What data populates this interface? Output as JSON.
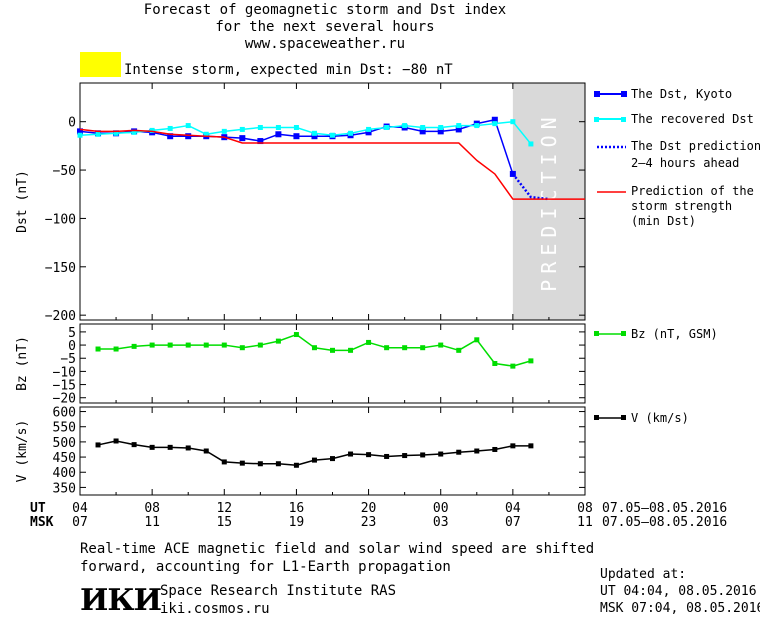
{
  "header": {
    "title_line1": "Forecast of geomagnetic storm and Dst index",
    "title_line2": "for the next several hours",
    "title_line3": "www.spaceweather.ru"
  },
  "status": {
    "text": "Intense storm, expected min Dst: −80 nT",
    "swatch_color": "#ffff00"
  },
  "footer": {
    "note_line1": "Real-time ACE magnetic field and solar wind speed are shifted",
    "note_line2": "forward, accounting for L1-Earth propagation",
    "logo_text": "ИКИ",
    "institute_name": "Space Research Institute RAS",
    "institute_site": "iki.cosmos.ru",
    "updated_title": "Updated at:",
    "updated_ut": "UT   04:04, 08.05.2016",
    "updated_msk": "MSK 07:04, 08.05.2016"
  },
  "time_axis": {
    "ut_label": "UT",
    "msk_label": "MSK",
    "ut_ticks": [
      "04",
      "08",
      "12",
      "16",
      "20",
      "00",
      "04",
      "08"
    ],
    "msk_ticks": [
      "07",
      "11",
      "15",
      "19",
      "23",
      "03",
      "07",
      "11"
    ],
    "ut_date_range": "07.05–08.05.2016",
    "msk_date_range": "07.05–08.05.2016"
  },
  "chart_data": [
    {
      "type": "line",
      "title": "Forecast of geomagnetic storm and Dst index",
      "ylabel": "Dst (nT)",
      "ylim": [
        -205,
        40
      ],
      "yticks": [
        0,
        -50,
        -100,
        -150,
        -200
      ],
      "x_unit": "hours since 04 UT 07.05.2016",
      "xlim": [
        0,
        28
      ],
      "shaded_region": {
        "x_from": 24,
        "x_to": 28,
        "label": "PREDICTION",
        "color": "#d9d9d9"
      },
      "series": [
        {
          "name": "The Dst, Kyoto",
          "color": "#0000ff",
          "x": [
            0,
            1,
            2,
            3,
            4,
            5,
            6,
            7,
            8,
            9,
            10,
            11,
            12,
            13,
            14,
            15,
            16,
            17,
            18,
            19,
            20,
            21,
            22,
            23,
            24
          ],
          "y": [
            -10,
            -12,
            -12,
            -10,
            -11,
            -15,
            -15,
            -15,
            -16,
            -17,
            -20,
            -13,
            -15,
            -15,
            -15,
            -14,
            -11,
            -5,
            -6,
            -10,
            -10,
            -8,
            -2,
            2,
            -54
          ]
        },
        {
          "name": "The recovered Dst",
          "color": "#00ffff",
          "x": [
            0,
            1,
            2,
            3,
            4,
            5,
            6,
            7,
            8,
            9,
            10,
            11,
            12,
            13,
            14,
            15,
            16,
            17,
            18,
            19,
            20,
            21,
            22,
            23,
            24,
            25
          ],
          "y": [
            -14,
            -13,
            -12,
            -11,
            -9,
            -7,
            -4,
            -13,
            -10,
            -8,
            -6,
            -6,
            -6,
            -12,
            -14,
            -12,
            -8,
            -6,
            -4,
            -6,
            -6,
            -4,
            -4,
            -2,
            0,
            -23
          ]
        },
        {
          "name": "The Dst prediction 2–4 hours ahead",
          "color": "#0000ff",
          "x": [
            24,
            25,
            26
          ],
          "y": [
            -54,
            -78,
            -80
          ]
        },
        {
          "name": "Prediction of the storm strength (min Dst)",
          "color": "#ff0000",
          "x": [
            0,
            1,
            2,
            3,
            4,
            5,
            6,
            7,
            8,
            9,
            10,
            11,
            12,
            13,
            14,
            15,
            16,
            17,
            18,
            19,
            20,
            21,
            22,
            23,
            24,
            26,
            28
          ],
          "y": [
            -8,
            -10,
            -10,
            -9,
            -10,
            -13,
            -14,
            -15,
            -16,
            -22,
            -22,
            -22,
            -22,
            -22,
            -22,
            -22,
            -22,
            -22,
            -22,
            -22,
            -22,
            -22,
            -40,
            -54,
            -80,
            -80,
            -80
          ]
        }
      ]
    },
    {
      "type": "line",
      "ylabel": "Bz (nT)",
      "ylim": [
        -22,
        8
      ],
      "yticks": [
        5,
        0,
        -5,
        -10,
        -15,
        -20
      ],
      "x_unit": "hours since 04 UT 07.05.2016",
      "xlim": [
        0,
        28
      ],
      "series": [
        {
          "name": "Bz (nT, GSM)",
          "color": "#00dd00",
          "x": [
            1,
            2,
            3,
            4,
            5,
            6,
            7,
            8,
            9,
            10,
            11,
            12,
            13,
            14,
            15,
            16,
            17,
            18,
            19,
            20,
            21,
            22,
            23,
            24,
            25
          ],
          "y": [
            -1.5,
            -1.5,
            -0.5,
            0,
            0,
            0,
            0,
            0,
            -1,
            0,
            1.5,
            4,
            -1,
            -2,
            -2,
            1,
            -1,
            -1,
            -1,
            0,
            -2,
            2,
            -7,
            -8,
            -6
          ]
        }
      ]
    },
    {
      "type": "line",
      "ylabel": "V (km/s)",
      "ylim": [
        325,
        615
      ],
      "yticks": [
        600,
        550,
        500,
        450,
        400,
        350
      ],
      "x_unit": "hours since 04 UT 07.05.2016",
      "xlim": [
        0,
        28
      ],
      "series": [
        {
          "name": "V (km/s)",
          "color": "#000000",
          "x": [
            1,
            2,
            3,
            4,
            5,
            6,
            7,
            8,
            9,
            10,
            11,
            12,
            13,
            14,
            15,
            16,
            17,
            18,
            19,
            20,
            21,
            22,
            23,
            24,
            25
          ],
          "y": [
            490,
            503,
            491,
            482,
            482,
            480,
            470,
            434,
            430,
            428,
            428,
            423,
            440,
            445,
            460,
            458,
            452,
            455,
            457,
            460,
            466,
            470,
            475,
            487,
            487
          ]
        }
      ]
    }
  ],
  "legend": {
    "dst_kyoto": "The Dst, Kyoto",
    "recovered": "The recovered Dst",
    "pred_line1": "The Dst prediction",
    "pred_line2": "2–4 hours ahead",
    "storm_line1": "Prediction of the",
    "storm_line2": "storm strength",
    "storm_line3": "(min Dst)",
    "bz": "Bz (nT, GSM)",
    "v": "V (km/s)"
  },
  "prediction_label": "PREDICTION"
}
